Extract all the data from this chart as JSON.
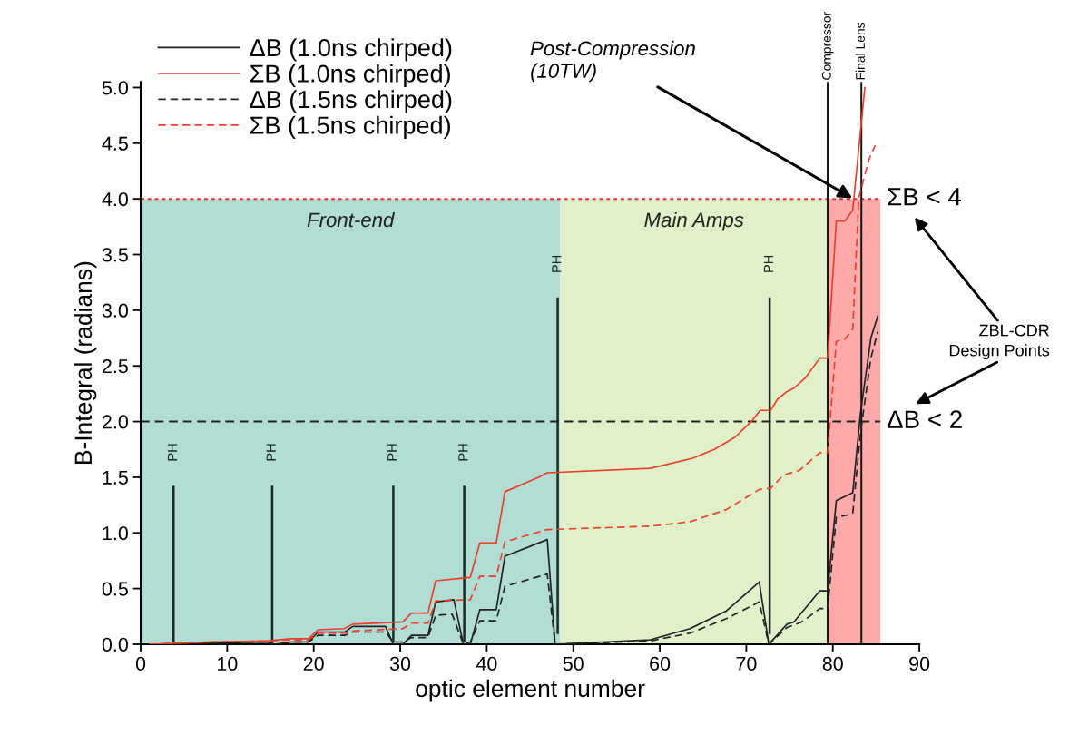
{
  "chart_data": {
    "type": "line",
    "xlabel": "optic element number",
    "ylabel": "B-Integral (radians)",
    "xlim": [
      0,
      90
    ],
    "xticks": [
      0,
      10,
      20,
      30,
      40,
      50,
      60,
      70,
      80,
      90
    ],
    "ylim": [
      0,
      5.05
    ],
    "yticks": [
      {
        "value": 0,
        "label": "0.0"
      },
      0.5,
      {
        "value": 1,
        "label": "1.0"
      },
      1.5,
      {
        "value": 2,
        "label": "2.0"
      },
      2.5,
      {
        "value": 3,
        "label": "3.0"
      },
      3.5,
      {
        "value": 4,
        "label": "4.0"
      },
      4.5,
      {
        "value": 5,
        "label": "5.0"
      }
    ],
    "legend": "top left",
    "marker": "none",
    "series": [
      {
        "name": "ΔB (1.0ns chirped)",
        "color": "#222222",
        "line_style": "solid",
        "x": [
          1,
          4,
          8,
          14.5,
          15.5,
          17.3,
          19.4,
          20.5,
          23.6,
          24.5,
          28.3,
          29.2,
          30.3,
          31.3,
          33.2,
          34.1,
          36.2,
          37.3,
          38.1,
          39.2,
          41.1,
          42.1,
          47.0,
          47.9,
          58.9,
          63.5,
          67.7,
          71.5,
          72.6,
          74.7,
          75.5,
          78.5,
          79.4,
          80.4,
          82.3,
          83.2,
          84.4,
          85.2
        ],
        "values": [
          0,
          0,
          0.01,
          0.02,
          0.0,
          0.02,
          0.02,
          0.11,
          0.11,
          0.16,
          0.16,
          0,
          0,
          0.08,
          0.08,
          0.38,
          0.4,
          0,
          0,
          0.31,
          0.31,
          0.79,
          0.94,
          0,
          0.04,
          0.14,
          0.3,
          0.56,
          0,
          0.18,
          0.2,
          0.48,
          0.48,
          1.29,
          1.36,
          2.08,
          2.75,
          2.95
        ]
      },
      {
        "name": "ΣB (1.0ns chirped)",
        "color": "#e8402a",
        "line_style": "solid",
        "x": [
          1,
          7.9,
          14.5,
          17.3,
          19.4,
          20.5,
          23.5,
          24.5,
          30.3,
          31.3,
          33.2,
          34.1,
          38.1,
          39.2,
          41.1,
          42.1,
          46.0,
          47.0,
          58.9,
          63.8,
          66.3,
          68.7,
          70.7,
          71.6,
          72.8,
          73.6,
          74.7,
          75.5,
          76.8,
          78.5,
          79.4,
          80.4,
          81.4,
          82.3,
          83.7
        ],
        "values": [
          0,
          0.02,
          0.03,
          0.05,
          0.05,
          0.13,
          0.14,
          0.18,
          0.2,
          0.28,
          0.28,
          0.57,
          0.6,
          0.91,
          0.91,
          1.37,
          1.5,
          1.54,
          1.58,
          1.67,
          1.75,
          1.86,
          2.01,
          2.1,
          2.1,
          2.2,
          2.27,
          2.3,
          2.39,
          2.57,
          2.57,
          3.8,
          3.8,
          3.9,
          5.0
        ]
      },
      {
        "name": "ΔB (1.5ns chirped)",
        "color": "#222222",
        "line_style": "dashed",
        "x": [
          1,
          4,
          8,
          14.5,
          15.5,
          17.3,
          19.4,
          20.5,
          23.6,
          24.5,
          28.3,
          29.2,
          30.3,
          31.3,
          33.2,
          34.1,
          36.0,
          37.3,
          38.1,
          39.2,
          41.1,
          42.1,
          47.0,
          47.9,
          58.9,
          63.5,
          67.7,
          71.5,
          72.6,
          74.7,
          76.4,
          78.5,
          79.4,
          80.4,
          82.3,
          83.2,
          84.4,
          85.2
        ],
        "values": [
          0,
          0,
          0.01,
          0.02,
          0.0,
          0.02,
          0.02,
          0.08,
          0.08,
          0.11,
          0.11,
          0.02,
          0.02,
          0.06,
          0.06,
          0.26,
          0.27,
          0,
          0.02,
          0.21,
          0.21,
          0.52,
          0.63,
          0,
          0.03,
          0.1,
          0.23,
          0.38,
          0,
          0.15,
          0.2,
          0.32,
          0.32,
          1.14,
          1.17,
          1.9,
          2.57,
          2.81
        ]
      },
      {
        "name": "ΣB (1.5ns chirped)",
        "color": "#e8402a",
        "line_style": "dashed",
        "x": [
          1,
          7.9,
          14.5,
          17.3,
          19.4,
          20.5,
          23.6,
          24.5,
          30.3,
          31.3,
          33.2,
          34.1,
          38.1,
          39.2,
          41.1,
          42.1,
          47.0,
          58.9,
          63.5,
          67.7,
          71.5,
          72.8,
          74.3,
          76.1,
          78.5,
          79.4,
          80.4,
          81.4,
          82.3,
          83.0,
          84.2,
          84.9
        ],
        "values": [
          0,
          0.02,
          0.03,
          0.04,
          0.04,
          0.1,
          0.1,
          0.12,
          0.14,
          0.19,
          0.19,
          0.39,
          0.4,
          0.61,
          0.61,
          0.92,
          1.03,
          1.06,
          1.1,
          1.21,
          1.39,
          1.4,
          1.52,
          1.56,
          1.72,
          1.72,
          2.72,
          2.74,
          2.83,
          4.01,
          4.36,
          4.48
        ]
      }
    ],
    "bands": [
      {
        "axis": "x",
        "from": 0,
        "to": 48.5,
        "label": "Front-end",
        "color": "#b2ddd4"
      },
      {
        "axis": "x",
        "from": 48.5,
        "to": 79.4,
        "label": "Main Amps",
        "color": "#e1f0c9"
      },
      {
        "axis": "x",
        "from": 79.4,
        "to": 85.5,
        "color": "#ffaaaa"
      }
    ],
    "ref_lines": [
      {
        "axis": "y",
        "value": 4.0,
        "label": "ΣB < 4",
        "color": "#e03030",
        "line_style": "dotted"
      },
      {
        "axis": "y",
        "value": 2.0,
        "label": "ΔB < 2",
        "color": "#222222",
        "line_style": "dashed"
      },
      {
        "axis": "x",
        "value": 79.4,
        "label": "Compressor",
        "color": "#111111",
        "line_style": "solid"
      },
      {
        "axis": "x",
        "value": 83.3,
        "label": "Final Lens",
        "color": "#111111",
        "line_style": "solid"
      },
      {
        "axis": "x",
        "value": 3.8,
        "label": "PH",
        "color": "#1a2a22",
        "line_style": "solid"
      },
      {
        "axis": "x",
        "value": 15.2,
        "label": "PH",
        "color": "#1a2a22",
        "line_style": "solid"
      },
      {
        "axis": "x",
        "value": 29.2,
        "label": "PH",
        "color": "#1a2a22",
        "line_style": "solid"
      },
      {
        "axis": "x",
        "value": 37.4,
        "label": "PH",
        "color": "#1a2a22",
        "line_style": "solid"
      },
      {
        "axis": "x",
        "value": 48.2,
        "label": "PH",
        "color": "#1a2a22",
        "line_style": "solid"
      },
      {
        "axis": "x",
        "value": 72.7,
        "label": "PH",
        "color": "#1a2a22",
        "line_style": "solid"
      }
    ],
    "annotations": [
      {
        "text": "Post-Compression\n(10TW)",
        "x": 82.4,
        "y": 4.0
      },
      "ZBL-CDR\nDesign Points"
    ]
  }
}
